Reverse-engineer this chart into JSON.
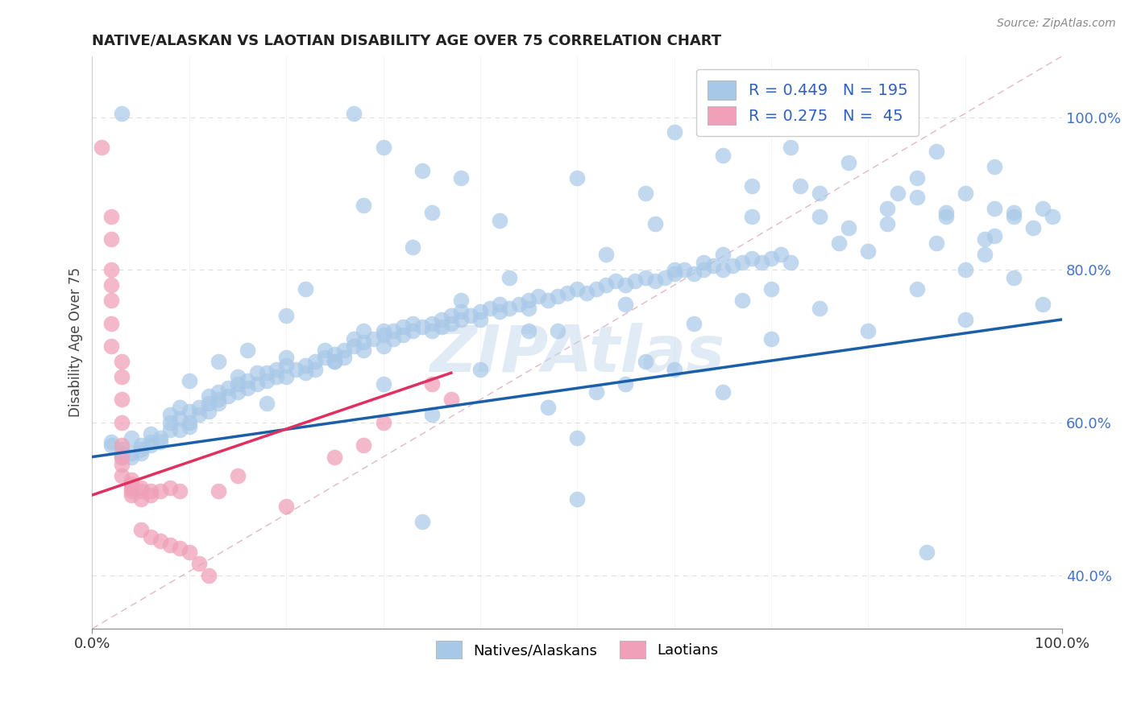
{
  "title": "NATIVE/ALASKAN VS LAOTIAN DISABILITY AGE OVER 75 CORRELATION CHART",
  "source_text": "Source: ZipAtlas.com",
  "ylabel": "Disability Age Over 75",
  "xlim": [
    0.0,
    1.0
  ],
  "ylim": [
    0.33,
    1.08
  ],
  "x_tick_labels": [
    "0.0%",
    "100.0%"
  ],
  "y_tick_labels": [
    "40.0%",
    "60.0%",
    "80.0%",
    "100.0%"
  ],
  "y_ticks": [
    0.4,
    0.6,
    0.8,
    1.0
  ],
  "blue_R": "0.449",
  "blue_N": "195",
  "pink_R": "0.275",
  "pink_N": "45",
  "blue_color": "#a8c8e8",
  "pink_color": "#f0a0b8",
  "blue_trend_color": "#1a5fa8",
  "pink_trend_color": "#e03060",
  "watermark": "ZIPAtlas",
  "blue_trend_x": [
    0.0,
    1.0
  ],
  "blue_trend_y": [
    0.555,
    0.735
  ],
  "pink_trend_x": [
    0.0,
    0.37
  ],
  "pink_trend_y": [
    0.505,
    0.665
  ],
  "diag_line_color": "#ddbbcc",
  "grid_color": "#dddddd",
  "blue_scatter": [
    [
      0.02,
      0.575
    ],
    [
      0.02,
      0.57
    ],
    [
      0.03,
      0.555
    ],
    [
      0.03,
      0.565
    ],
    [
      0.03,
      0.56
    ],
    [
      0.04,
      0.555
    ],
    [
      0.04,
      0.56
    ],
    [
      0.04,
      0.58
    ],
    [
      0.05,
      0.56
    ],
    [
      0.05,
      0.57
    ],
    [
      0.05,
      0.565
    ],
    [
      0.06,
      0.575
    ],
    [
      0.06,
      0.57
    ],
    [
      0.06,
      0.585
    ],
    [
      0.07,
      0.58
    ],
    [
      0.07,
      0.575
    ],
    [
      0.08,
      0.61
    ],
    [
      0.08,
      0.59
    ],
    [
      0.08,
      0.6
    ],
    [
      0.09,
      0.605
    ],
    [
      0.09,
      0.59
    ],
    [
      0.09,
      0.62
    ],
    [
      0.1,
      0.6
    ],
    [
      0.1,
      0.595
    ],
    [
      0.1,
      0.615
    ],
    [
      0.11,
      0.61
    ],
    [
      0.11,
      0.62
    ],
    [
      0.12,
      0.625
    ],
    [
      0.12,
      0.615
    ],
    [
      0.12,
      0.635
    ],
    [
      0.13,
      0.63
    ],
    [
      0.13,
      0.64
    ],
    [
      0.13,
      0.625
    ],
    [
      0.14,
      0.635
    ],
    [
      0.14,
      0.645
    ],
    [
      0.15,
      0.64
    ],
    [
      0.15,
      0.65
    ],
    [
      0.15,
      0.66
    ],
    [
      0.16,
      0.645
    ],
    [
      0.16,
      0.655
    ],
    [
      0.17,
      0.65
    ],
    [
      0.17,
      0.665
    ],
    [
      0.18,
      0.655
    ],
    [
      0.18,
      0.665
    ],
    [
      0.19,
      0.66
    ],
    [
      0.19,
      0.67
    ],
    [
      0.2,
      0.66
    ],
    [
      0.2,
      0.675
    ],
    [
      0.2,
      0.685
    ],
    [
      0.21,
      0.67
    ],
    [
      0.22,
      0.675
    ],
    [
      0.22,
      0.665
    ],
    [
      0.23,
      0.68
    ],
    [
      0.23,
      0.67
    ],
    [
      0.24,
      0.685
    ],
    [
      0.24,
      0.695
    ],
    [
      0.25,
      0.69
    ],
    [
      0.25,
      0.68
    ],
    [
      0.26,
      0.695
    ],
    [
      0.26,
      0.685
    ],
    [
      0.27,
      0.7
    ],
    [
      0.27,
      0.71
    ],
    [
      0.28,
      0.695
    ],
    [
      0.28,
      0.705
    ],
    [
      0.29,
      0.71
    ],
    [
      0.3,
      0.7
    ],
    [
      0.3,
      0.715
    ],
    [
      0.3,
      0.72
    ],
    [
      0.31,
      0.71
    ],
    [
      0.31,
      0.72
    ],
    [
      0.32,
      0.715
    ],
    [
      0.32,
      0.725
    ],
    [
      0.33,
      0.72
    ],
    [
      0.33,
      0.73
    ],
    [
      0.34,
      0.725
    ],
    [
      0.35,
      0.73
    ],
    [
      0.35,
      0.72
    ],
    [
      0.36,
      0.735
    ],
    [
      0.36,
      0.725
    ],
    [
      0.37,
      0.74
    ],
    [
      0.37,
      0.73
    ],
    [
      0.38,
      0.745
    ],
    [
      0.38,
      0.735
    ],
    [
      0.39,
      0.74
    ],
    [
      0.4,
      0.745
    ],
    [
      0.4,
      0.735
    ],
    [
      0.41,
      0.75
    ],
    [
      0.42,
      0.745
    ],
    [
      0.42,
      0.755
    ],
    [
      0.43,
      0.75
    ],
    [
      0.44,
      0.755
    ],
    [
      0.45,
      0.76
    ],
    [
      0.45,
      0.75
    ],
    [
      0.46,
      0.765
    ],
    [
      0.47,
      0.76
    ],
    [
      0.48,
      0.765
    ],
    [
      0.49,
      0.77
    ],
    [
      0.5,
      0.775
    ],
    [
      0.51,
      0.77
    ],
    [
      0.52,
      0.775
    ],
    [
      0.53,
      0.78
    ],
    [
      0.54,
      0.785
    ],
    [
      0.55,
      0.78
    ],
    [
      0.56,
      0.785
    ],
    [
      0.57,
      0.79
    ],
    [
      0.58,
      0.785
    ],
    [
      0.59,
      0.79
    ],
    [
      0.6,
      0.795
    ],
    [
      0.61,
      0.8
    ],
    [
      0.62,
      0.795
    ],
    [
      0.63,
      0.8
    ],
    [
      0.64,
      0.805
    ],
    [
      0.65,
      0.8
    ],
    [
      0.66,
      0.805
    ],
    [
      0.67,
      0.81
    ],
    [
      0.68,
      0.815
    ],
    [
      0.69,
      0.81
    ],
    [
      0.7,
      0.815
    ],
    [
      0.71,
      0.82
    ],
    [
      0.03,
      1.005
    ],
    [
      0.27,
      1.005
    ],
    [
      0.3,
      0.96
    ],
    [
      0.34,
      0.93
    ],
    [
      0.38,
      0.92
    ],
    [
      0.28,
      0.885
    ],
    [
      0.35,
      0.875
    ],
    [
      0.42,
      0.865
    ],
    [
      0.5,
      0.92
    ],
    [
      0.57,
      0.9
    ],
    [
      0.6,
      0.98
    ],
    [
      0.65,
      0.95
    ],
    [
      0.68,
      0.91
    ],
    [
      0.72,
      0.96
    ],
    [
      0.75,
      0.9
    ],
    [
      0.78,
      0.94
    ],
    [
      0.8,
      1.0
    ],
    [
      0.82,
      0.88
    ],
    [
      0.85,
      0.92
    ],
    [
      0.87,
      0.955
    ],
    [
      0.88,
      0.87
    ],
    [
      0.9,
      0.9
    ],
    [
      0.93,
      0.88
    ],
    [
      0.93,
      0.845
    ],
    [
      0.95,
      0.87
    ],
    [
      0.99,
      0.87
    ],
    [
      0.16,
      0.695
    ],
    [
      0.2,
      0.74
    ],
    [
      0.25,
      0.68
    ],
    [
      0.3,
      0.65
    ],
    [
      0.35,
      0.61
    ],
    [
      0.4,
      0.67
    ],
    [
      0.45,
      0.72
    ],
    [
      0.5,
      0.58
    ],
    [
      0.55,
      0.755
    ],
    [
      0.6,
      0.8
    ],
    [
      0.65,
      0.82
    ],
    [
      0.7,
      0.775
    ],
    [
      0.75,
      0.87
    ],
    [
      0.8,
      0.825
    ],
    [
      0.85,
      0.895
    ],
    [
      0.9,
      0.8
    ],
    [
      0.92,
      0.84
    ],
    [
      0.95,
      0.875
    ],
    [
      0.97,
      0.855
    ],
    [
      0.98,
      0.88
    ],
    [
      0.1,
      0.655
    ],
    [
      0.13,
      0.68
    ],
    [
      0.18,
      0.625
    ],
    [
      0.22,
      0.775
    ],
    [
      0.28,
      0.72
    ],
    [
      0.33,
      0.83
    ],
    [
      0.38,
      0.76
    ],
    [
      0.43,
      0.79
    ],
    [
      0.48,
      0.72
    ],
    [
      0.53,
      0.82
    ],
    [
      0.58,
      0.86
    ],
    [
      0.63,
      0.81
    ],
    [
      0.68,
      0.87
    ],
    [
      0.73,
      0.91
    ],
    [
      0.78,
      0.855
    ],
    [
      0.83,
      0.9
    ],
    [
      0.88,
      0.875
    ],
    [
      0.93,
      0.935
    ],
    [
      0.55,
      0.65
    ],
    [
      0.6,
      0.67
    ],
    [
      0.65,
      0.64
    ],
    [
      0.7,
      0.71
    ],
    [
      0.75,
      0.75
    ],
    [
      0.8,
      0.72
    ],
    [
      0.85,
      0.775
    ],
    [
      0.9,
      0.735
    ],
    [
      0.95,
      0.79
    ],
    [
      0.98,
      0.755
    ],
    [
      0.47,
      0.62
    ],
    [
      0.52,
      0.64
    ],
    [
      0.57,
      0.68
    ],
    [
      0.62,
      0.73
    ],
    [
      0.67,
      0.76
    ],
    [
      0.72,
      0.81
    ],
    [
      0.77,
      0.835
    ],
    [
      0.82,
      0.86
    ],
    [
      0.87,
      0.835
    ],
    [
      0.92,
      0.82
    ],
    [
      0.5,
      0.5
    ],
    [
      0.34,
      0.47
    ],
    [
      0.86,
      0.43
    ]
  ],
  "pink_scatter": [
    [
      0.01,
      0.96
    ],
    [
      0.02,
      0.87
    ],
    [
      0.02,
      0.84
    ],
    [
      0.02,
      0.8
    ],
    [
      0.02,
      0.78
    ],
    [
      0.02,
      0.76
    ],
    [
      0.02,
      0.73
    ],
    [
      0.02,
      0.7
    ],
    [
      0.03,
      0.68
    ],
    [
      0.03,
      0.66
    ],
    [
      0.03,
      0.63
    ],
    [
      0.03,
      0.6
    ],
    [
      0.03,
      0.57
    ],
    [
      0.03,
      0.555
    ],
    [
      0.03,
      0.545
    ],
    [
      0.03,
      0.53
    ],
    [
      0.04,
      0.525
    ],
    [
      0.04,
      0.52
    ],
    [
      0.04,
      0.515
    ],
    [
      0.04,
      0.51
    ],
    [
      0.04,
      0.505
    ],
    [
      0.05,
      0.515
    ],
    [
      0.05,
      0.5
    ],
    [
      0.05,
      0.51
    ],
    [
      0.06,
      0.51
    ],
    [
      0.06,
      0.505
    ],
    [
      0.07,
      0.51
    ],
    [
      0.08,
      0.515
    ],
    [
      0.09,
      0.51
    ],
    [
      0.13,
      0.51
    ],
    [
      0.15,
      0.53
    ],
    [
      0.2,
      0.49
    ],
    [
      0.25,
      0.555
    ],
    [
      0.28,
      0.57
    ],
    [
      0.3,
      0.6
    ],
    [
      0.35,
      0.65
    ],
    [
      0.37,
      0.63
    ],
    [
      0.05,
      0.46
    ],
    [
      0.06,
      0.45
    ],
    [
      0.07,
      0.445
    ],
    [
      0.08,
      0.44
    ],
    [
      0.09,
      0.435
    ],
    [
      0.1,
      0.43
    ],
    [
      0.11,
      0.415
    ],
    [
      0.12,
      0.4
    ]
  ]
}
